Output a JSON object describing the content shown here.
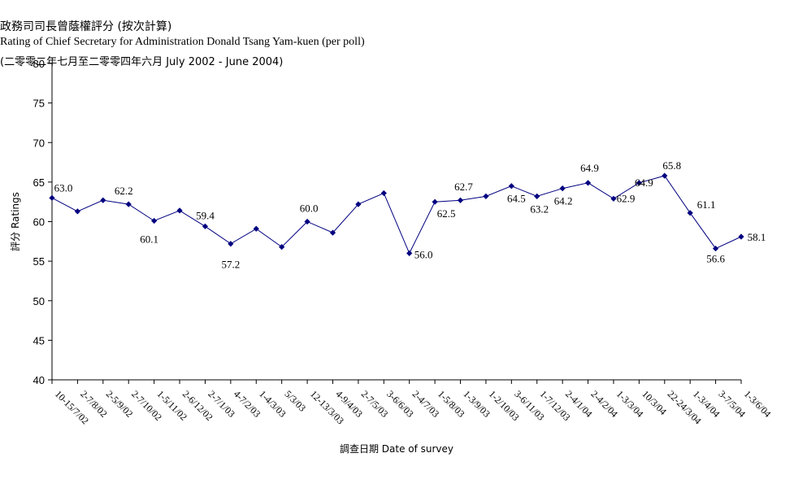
{
  "chart_data": {
    "type": "line",
    "title_zh": "政務司司長曾蔭權評分 (按次計算)",
    "title_en": "Rating of Chief Secretary for Administration Donald Tsang Yam-kuen  (per poll)",
    "subtitle": "(二零零二年七月至二零零四年六月 July 2002 - June 2004)",
    "xlabel": "調查日期 Date of survey",
    "ylabel": "評分 Ratings",
    "ylim": [
      40,
      80
    ],
    "yticks": [
      40,
      45,
      50,
      55,
      60,
      65,
      70,
      75,
      80
    ],
    "grid": false,
    "legend": "none",
    "line_color": "#000080",
    "categories": [
      "10-15/7/02",
      "2-7/8/02",
      "2-5/9/02",
      "2-7/10/02",
      "1-5/11/02",
      "2-6/12/02",
      "2-7/1/03",
      "4-7/2/03",
      "1-4/3/03",
      "5/3/03",
      "12-13/3/03",
      "4-9/4/03",
      "2-7/5/03",
      "3-6/6/03",
      "2-4/7/03",
      "1-5/8/03",
      "1-3/9/03",
      "1-2/10/03",
      "3-6/11/03",
      "1-7/12/03",
      "2-4/1/04",
      "2-4/2/04",
      "1-3/3/04",
      "10/3/04",
      "22-24/3/04",
      "1-3/4/04",
      "3-7/5/04",
      "1-3/6/04"
    ],
    "values": [
      63.0,
      61.3,
      62.7,
      62.2,
      60.1,
      61.4,
      59.4,
      57.2,
      59.1,
      56.8,
      60.0,
      58.6,
      62.2,
      63.6,
      56.0,
      62.5,
      62.7,
      63.2,
      64.5,
      63.2,
      64.2,
      64.9,
      62.9,
      64.9,
      65.8,
      61.1,
      56.6,
      58.1
    ],
    "data_labels": [
      {
        "index": 0,
        "text": "63.0"
      },
      {
        "index": 3,
        "text": "62.2"
      },
      {
        "index": 4,
        "text": "60.1"
      },
      {
        "index": 6,
        "text": "59.4"
      },
      {
        "index": 7,
        "text": "57.2"
      },
      {
        "index": 10,
        "text": "60.0"
      },
      {
        "index": 14,
        "text": "56.0"
      },
      {
        "index": 15,
        "text": "62.5"
      },
      {
        "index": 16,
        "text": "62.7"
      },
      {
        "index": 18,
        "text": "64.5"
      },
      {
        "index": 19,
        "text": "63.2"
      },
      {
        "index": 20,
        "text": "64.2"
      },
      {
        "index": 21,
        "text": "64.9"
      },
      {
        "index": 22,
        "text": "62.9"
      },
      {
        "index": 23,
        "text": "64.9"
      },
      {
        "index": 24,
        "text": "65.8"
      },
      {
        "index": 25,
        "text": "61.1"
      },
      {
        "index": 26,
        "text": "56.6"
      },
      {
        "index": 27,
        "text": "58.1"
      }
    ]
  }
}
